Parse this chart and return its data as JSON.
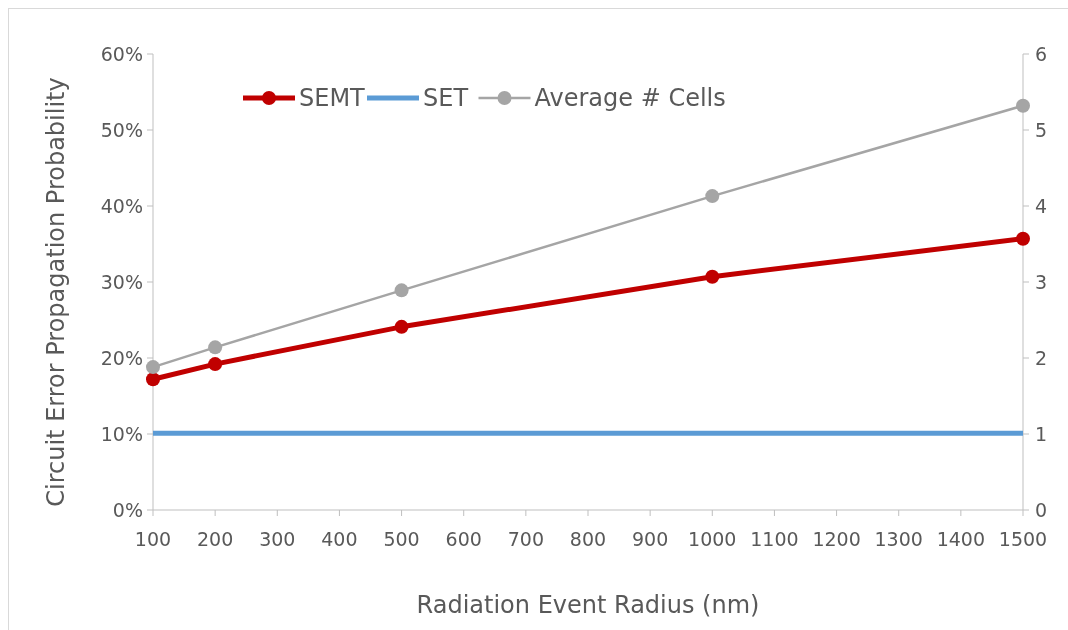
{
  "chart_data": {
    "type": "line",
    "xlabel": "Radiation Event Radius (nm)",
    "ylabel": "Circuit Error Propagation Probability",
    "x": [
      100,
      200,
      500,
      1000,
      1500
    ],
    "xlim": [
      100,
      1500
    ],
    "xticks": [
      100,
      200,
      300,
      400,
      500,
      600,
      700,
      800,
      900,
      1000,
      1100,
      1200,
      1300,
      1400,
      1500
    ],
    "ylim": [
      0,
      60
    ],
    "yticks": [
      {
        "value": 0,
        "label": "0%"
      },
      {
        "value": 10,
        "label": "10%"
      },
      {
        "value": 20,
        "label": "20%"
      },
      {
        "value": 30,
        "label": "30%"
      },
      {
        "value": 40,
        "label": "40%"
      },
      {
        "value": 50,
        "label": "50%"
      },
      {
        "value": 60,
        "label": "60%"
      }
    ],
    "y2lim": [
      0,
      6
    ],
    "y2ticks": [
      0,
      1,
      2,
      3,
      4,
      5,
      6
    ],
    "legend": "top left",
    "grid": false,
    "series": [
      {
        "name": "SEMT",
        "color": "#c00000",
        "values": [
          17.2,
          19.2,
          24.1,
          30.7,
          35.7
        ],
        "marker": "circle"
      },
      {
        "name": "SET",
        "color": "#5b9bd5",
        "values": [
          10.1,
          10.1,
          10.1,
          10.1,
          10.1
        ],
        "marker": "none"
      },
      {
        "name": "Average # Cells",
        "color": "#a5a5a5",
        "values": [
          1.88,
          2.14,
          2.89,
          4.13,
          5.32
        ],
        "marker": "circle",
        "axis": "y2"
      }
    ]
  }
}
